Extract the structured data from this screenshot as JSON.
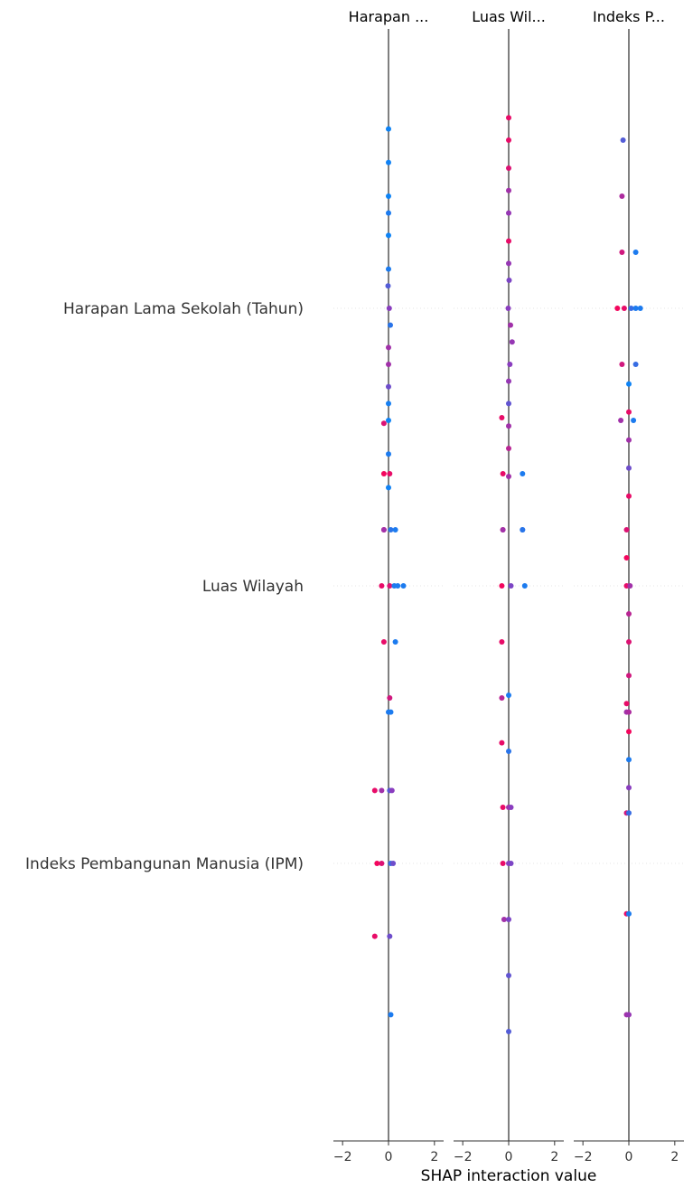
{
  "chart_data": {
    "type": "scatter",
    "xlabel": "SHAP interaction value",
    "xlim": [
      -2.4,
      2.4
    ],
    "xticks": [
      -2,
      0,
      2
    ],
    "xtick_labels": [
      "−2",
      "0",
      "2"
    ],
    "panel_titles": [
      "Harapan ...",
      "Luas Wil...",
      "Indeks P..."
    ],
    "features": [
      "Harapan Lama Sekolah (Tahun)",
      "Luas Wilayah",
      "Indeks Pembangunan Manusia (IPM)"
    ],
    "colors": {
      "high": "#ff0052",
      "mid": "#8a3dbf",
      "low": "#008bfb",
      "axis": "#7f7f7f",
      "gridline": "#e6e6e6"
    },
    "points": [
      {
        "panel": 0,
        "feature": 0,
        "offsets": [
          -0.32,
          -0.26,
          -0.2,
          -0.17,
          -0.13,
          -0.07,
          -0.04,
          0,
          0.03,
          0.07,
          0.1,
          0.14,
          0.17,
          0.2,
          0.26,
          0.32
        ],
        "values": [
          0,
          0,
          0,
          0,
          0,
          0,
          -0.02,
          0.03,
          0.08,
          0,
          0,
          0,
          0,
          0,
          0,
          0
        ],
        "colors": [
          0.05,
          0.06,
          0.05,
          0.1,
          0.05,
          0.1,
          0.3,
          0.5,
          0.15,
          0.6,
          0.6,
          0.4,
          0.08,
          0.05,
          0.1,
          0.06
        ]
      },
      {
        "panel": 1,
        "feature": 0,
        "offsets": [
          -0.34,
          -0.3,
          -0.25,
          -0.21,
          -0.17,
          -0.12,
          -0.08,
          -0.05,
          0,
          0.03,
          0.06,
          0.1,
          0.13,
          0.17,
          0.21,
          0.25,
          0.3
        ],
        "values": [
          0,
          0,
          0,
          0,
          0,
          0,
          0,
          0.02,
          -0.02,
          0.08,
          0.15,
          0.05,
          0,
          0,
          0,
          0,
          0
        ],
        "colors": [
          0.9,
          0.9,
          0.85,
          0.6,
          0.55,
          0.9,
          0.55,
          0.45,
          0.5,
          0.6,
          0.55,
          0.5,
          0.55,
          0.35,
          0.6,
          0.7,
          0.6
        ]
      },
      {
        "panel": 2,
        "feature": 0,
        "offsets": [
          -0.3,
          -0.2,
          -0.1,
          -0.1,
          0,
          0,
          0,
          0,
          0,
          0.1,
          0.1,
          0.2,
          0.2
        ],
        "values": [
          -0.25,
          -0.3,
          -0.3,
          0.3,
          -0.5,
          -0.2,
          0.1,
          0.3,
          0.5,
          -0.3,
          0.3,
          -0.35,
          0.2
        ],
        "colors": [
          0.3,
          0.65,
          0.8,
          0.1,
          0.95,
          0.9,
          0.2,
          0.1,
          0.1,
          0.8,
          0.2,
          0.6,
          0.1
        ]
      },
      {
        "panel": 0,
        "feature": 1,
        "offsets": [
          -0.29,
          -0.2,
          -0.2,
          -0.1,
          -0.1,
          -0.1,
          -0.1,
          0,
          0,
          0,
          0,
          0,
          0.1,
          0.1,
          0.2
        ],
        "values": [
          -0.2,
          -0.2,
          0.05,
          -0.2,
          0.1,
          0.3,
          -0.2,
          -0.3,
          0.05,
          0.25,
          0.4,
          0.65,
          -0.2,
          0.3,
          0.05
        ],
        "colors": [
          0.85,
          0.95,
          0.9,
          0.9,
          0.15,
          0.1,
          0.6,
          0.9,
          0.85,
          0.1,
          0.1,
          0.1,
          0.9,
          0.1,
          0.8
        ]
      },
      {
        "panel": 1,
        "feature": 1,
        "offsets": [
          -0.3,
          -0.2,
          -0.2,
          -0.1,
          -0.1,
          -0.1,
          -0.1,
          0,
          0,
          0,
          0.1,
          0.2,
          0.28
        ],
        "values": [
          -0.3,
          -0.25,
          0.6,
          -0.25,
          0.6,
          0.6,
          -0.25,
          -0.3,
          0.1,
          0.7,
          -0.3,
          -0.3,
          -0.3
        ],
        "colors": [
          0.9,
          0.9,
          0.1,
          0.85,
          0.1,
          0.15,
          0.6,
          0.95,
          0.45,
          0.1,
          0.9,
          0.7,
          0.9
        ]
      },
      {
        "panel": 2,
        "feature": 1,
        "offsets": [
          -0.36,
          -0.31,
          -0.26,
          -0.21,
          -0.16,
          -0.1,
          -0.05,
          0,
          0,
          0.05,
          0.1,
          0.16,
          0.21,
          0.26,
          0.31,
          0.36
        ],
        "values": [
          0,
          0,
          0,
          0,
          0,
          -0.1,
          -0.1,
          -0.1,
          0.05,
          0,
          0,
          0,
          -0.1,
          0,
          0,
          0
        ],
        "colors": [
          0.05,
          0.9,
          0.6,
          0.4,
          0.9,
          0.85,
          0.95,
          0.9,
          0.6,
          0.7,
          0.85,
          0.8,
          0.9,
          0.95,
          0.1,
          0.5
        ]
      },
      {
        "panel": 0,
        "feature": 2,
        "offsets": [
          -0.27,
          -0.27,
          -0.13,
          -0.13,
          -0.13,
          -0.13,
          0,
          0,
          0,
          0,
          0.13,
          0.13,
          0.27
        ],
        "values": [
          0,
          0.1,
          -0.6,
          -0.3,
          0.05,
          0.15,
          -0.5,
          -0.3,
          0.1,
          0.2,
          -0.6,
          0.05,
          0.1
        ],
        "colors": [
          0.1,
          0.1,
          0.9,
          0.6,
          0.3,
          0.5,
          0.95,
          0.85,
          0.2,
          0.4,
          0.9,
          0.4,
          0.1
        ]
      },
      {
        "panel": 1,
        "feature": 2,
        "offsets": [
          -0.3,
          -0.2,
          -0.1,
          -0.1,
          -0.1,
          0,
          0,
          0,
          0.1,
          0.1,
          0.2,
          0.3
        ],
        "values": [
          0,
          0,
          -0.25,
          0,
          0.1,
          -0.25,
          0,
          0.1,
          -0.2,
          0,
          0,
          0
        ],
        "colors": [
          0.1,
          0.15,
          0.9,
          0.6,
          0.5,
          0.9,
          0.5,
          0.45,
          0.6,
          0.45,
          0.35,
          0.3
        ]
      },
      {
        "panel": 2,
        "feature": 2,
        "offsets": [
          -0.27,
          -0.27,
          -0.09,
          -0.09,
          0.09,
          0.09,
          0.27,
          0.27
        ],
        "values": [
          -0.1,
          0,
          -0.1,
          0,
          -0.1,
          0,
          -0.1,
          0
        ],
        "colors": [
          0.6,
          0.65,
          0.8,
          0.2,
          0.9,
          0.1,
          0.6,
          0.55
        ]
      }
    ]
  }
}
